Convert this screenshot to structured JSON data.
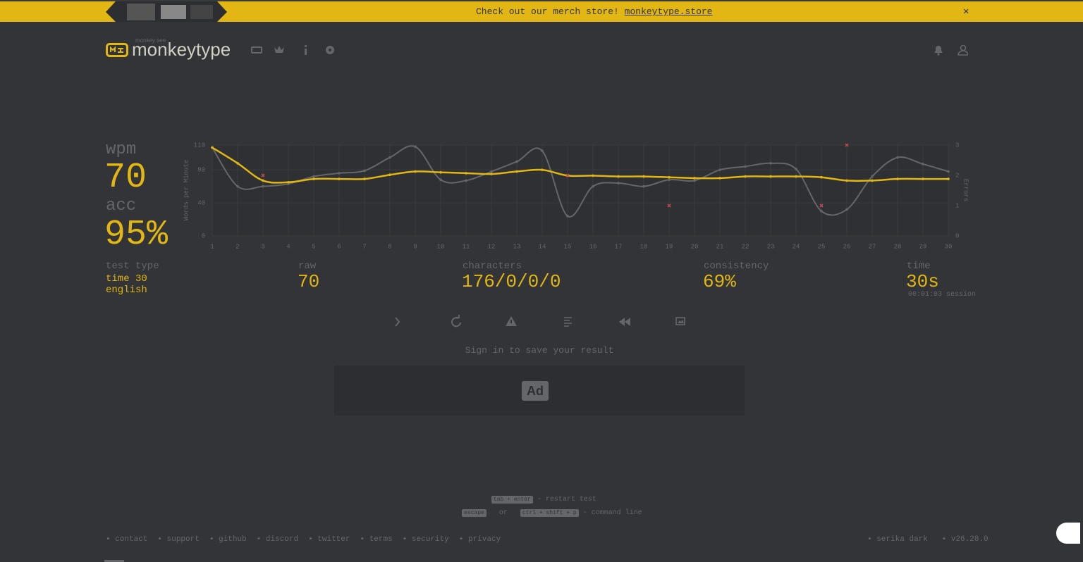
{
  "banner": {
    "text": "Check out our merch store!",
    "link": "monkeytype.store",
    "close": "✕"
  },
  "header": {
    "logo_small": "monkey see",
    "logo": "monkeytype"
  },
  "result": {
    "wpm_label": "wpm",
    "wpm": "70",
    "acc_label": "acc",
    "acc": "95%",
    "test_type_label": "test type",
    "test_type": [
      "time 30",
      "english"
    ],
    "raw_label": "raw",
    "raw": "70",
    "characters_label": "characters",
    "characters": "176/0/0/0",
    "consistency_label": "consistency",
    "consistency": "69%",
    "time_label": "time",
    "time": "30s",
    "session": "00:01:03 session"
  },
  "sign_in": "Sign in to save your result",
  "ad": "Ad",
  "hints": [
    {
      "keys": [
        "tab + enter"
      ],
      "text": "- restart test",
      "or": null
    },
    {
      "keys": [
        "escape",
        "ctrl + shift + p"
      ],
      "or": "or",
      "text": "- command line"
    }
  ],
  "footer": {
    "links": [
      "contact",
      "support",
      "github",
      "discord",
      "twitter",
      "terms",
      "security",
      "privacy"
    ],
    "theme": "serika dark",
    "version": "v26.28.0"
  },
  "chart_data": {
    "type": "line",
    "y_label": "Words per Minute",
    "y2_label": "Errors",
    "x": [
      1,
      2,
      3,
      4,
      5,
      6,
      7,
      8,
      9,
      10,
      11,
      12,
      13,
      14,
      15,
      16,
      17,
      18,
      19,
      20,
      21,
      22,
      23,
      24,
      25,
      26,
      27,
      28,
      29,
      30
    ],
    "xlim": [
      1,
      30
    ],
    "xticks": [
      1,
      2,
      3,
      4,
      5,
      6,
      7,
      8,
      9,
      10,
      11,
      12,
      13,
      14,
      15,
      16,
      17,
      18,
      19,
      20,
      21,
      22,
      23,
      24,
      25,
      26,
      27,
      28,
      29,
      30
    ],
    "ylim": [
      0,
      110
    ],
    "yticks": [
      0,
      40,
      80,
      110
    ],
    "y2lim": [
      0,
      3
    ],
    "y2ticks": [
      0,
      1,
      2,
      3
    ],
    "grid": true,
    "series": [
      {
        "color": "#e2b714",
        "values": [
          107,
          88,
          67,
          65,
          69,
          69,
          69,
          74,
          78,
          77,
          76,
          75,
          78,
          80,
          73,
          73,
          72,
          72,
          71,
          70,
          70,
          72,
          72,
          72,
          71,
          67,
          67,
          69,
          69,
          69
        ]
      },
      {
        "color": "#646669",
        "values": [
          107,
          60,
          60,
          63,
          72,
          76,
          79,
          95,
          108,
          68,
          67,
          78,
          90,
          103,
          24,
          60,
          64,
          60,
          68,
          67,
          80,
          84,
          88,
          81,
          30,
          32,
          72,
          95,
          87,
          78
        ]
      },
      {
        "color": "#ca4754",
        "axis": "y2",
        "mode": "markers",
        "values": [
          null,
          null,
          2,
          null,
          null,
          null,
          null,
          null,
          null,
          null,
          null,
          null,
          null,
          null,
          2,
          null,
          null,
          null,
          1,
          null,
          null,
          null,
          null,
          null,
          1,
          3,
          null,
          null,
          null,
          null
        ]
      }
    ]
  }
}
